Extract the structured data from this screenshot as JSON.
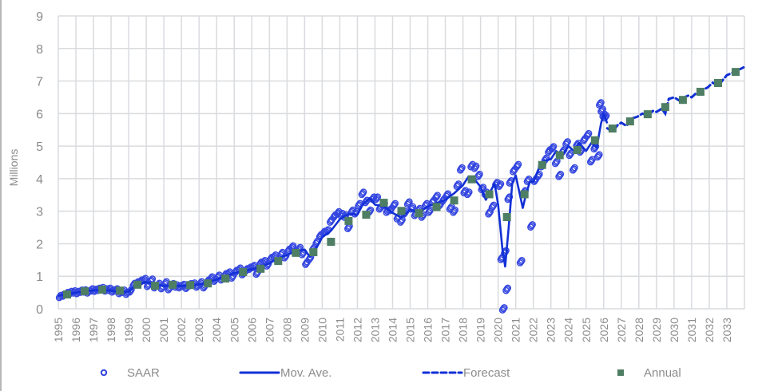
{
  "chart_data": {
    "type": "line",
    "title": "",
    "xlabel": "",
    "ylabel": "Millions",
    "ylim": [
      0,
      9
    ],
    "yticks": [
      "0",
      "1",
      "2",
      "3",
      "4",
      "5",
      "6",
      "7",
      "8",
      "9"
    ],
    "xticks": [
      "1995",
      "1996",
      "1997",
      "1998",
      "1999",
      "2000",
      "2001",
      "2002",
      "2003",
      "2004",
      "2005",
      "2006",
      "2007",
      "2008",
      "2009",
      "2010",
      "2011",
      "2012",
      "2013",
      "2014",
      "2015",
      "2016",
      "2017",
      "2018",
      "2019",
      "2020",
      "2021",
      "2022",
      "2023",
      "2024",
      "2025",
      "2026",
      "2027",
      "2028",
      "2029",
      "2030",
      "2031",
      "2032",
      "2033"
    ],
    "grid": true,
    "legend_position": "bottom",
    "legend": [
      "SAAR",
      "Mov. Ave.",
      "Forecast",
      "Annual"
    ],
    "colors": {
      "saar": "#3446e0",
      "mov_ave": "#1230d6",
      "forecast": "#1230d6",
      "annual": "#4e7e63",
      "grid": "#d9dbde",
      "text": "#8c8c8c"
    },
    "series": [
      {
        "name": "Annual",
        "x": [
          1995.5,
          1996.5,
          1997.5,
          1998.5,
          1999.5,
          2000.5,
          2001.5,
          2002.5,
          2003.5,
          2004.5,
          2005.5,
          2006.5,
          2007.5,
          2008.5,
          2009.5,
          2010.5,
          2011.5,
          2012.5,
          2013.5,
          2014.5,
          2015.5,
          2016.5,
          2017.5,
          2018.5,
          2019.5,
          2020.5,
          2021.5,
          2022.5,
          2023.5,
          2024.5,
          2025.5,
          2026.5,
          2027.5,
          2028.5,
          2029.5,
          2030.5,
          2031.5,
          2032.5,
          2033.5
        ],
        "values": [
          0.44,
          0.54,
          0.59,
          0.56,
          0.74,
          0.71,
          0.74,
          0.73,
          0.78,
          0.93,
          1.13,
          1.23,
          1.47,
          1.72,
          1.74,
          2.06,
          2.7,
          2.89,
          3.26,
          3.01,
          2.94,
          3.13,
          3.33,
          3.98,
          3.52,
          2.82,
          3.52,
          4.42,
          4.72,
          4.88,
          5.18,
          5.54,
          5.76,
          5.98,
          6.2,
          6.42,
          6.67,
          6.94,
          7.28
        ]
      },
      {
        "name": "Mov. Ave.",
        "x": [
          1995.0,
          1995.5,
          1996.0,
          1996.5,
          1997.0,
          1997.5,
          1998.0,
          1998.5,
          1999.0,
          1999.3,
          1999.7,
          2000.0,
          2000.5,
          2001.0,
          2001.5,
          2002.0,
          2002.5,
          2003.0,
          2003.5,
          2004.0,
          2004.5,
          2005.0,
          2005.5,
          2006.0,
          2006.5,
          2007.0,
          2007.5,
          2008.0,
          2008.5,
          2009.0,
          2009.3,
          2009.7,
          2010.0,
          2010.5,
          2011.0,
          2011.5,
          2012.0,
          2012.3,
          2012.7,
          2013.0,
          2013.5,
          2014.0,
          2014.5,
          2015.0,
          2015.5,
          2016.0,
          2016.5,
          2017.0,
          2017.5,
          2018.0,
          2018.3,
          2018.7,
          2019.0,
          2019.3,
          2019.5,
          2019.8,
          2020.0,
          2020.25,
          2020.4,
          2020.6,
          2020.8,
          2021.0,
          2021.2,
          2021.4,
          2021.6,
          2021.8,
          2022.0,
          2022.3,
          2022.6,
          2023.0,
          2023.3,
          2023.6,
          2024.0,
          2024.3,
          2024.6,
          2025.0,
          2025.3,
          2025.6,
          2025.85,
          2026.0,
          2026.2
        ],
        "values": [
          0.4,
          0.45,
          0.5,
          0.53,
          0.57,
          0.58,
          0.56,
          0.52,
          0.53,
          0.68,
          0.78,
          0.82,
          0.75,
          0.7,
          0.72,
          0.7,
          0.72,
          0.75,
          0.8,
          0.9,
          1.0,
          1.1,
          1.15,
          1.22,
          1.28,
          1.4,
          1.55,
          1.65,
          1.78,
          1.82,
          1.6,
          1.9,
          2.2,
          2.4,
          2.75,
          2.92,
          2.9,
          3.2,
          3.4,
          3.2,
          3.15,
          2.95,
          2.8,
          3.05,
          2.95,
          3.15,
          3.25,
          3.35,
          3.55,
          3.8,
          4.05,
          3.95,
          3.75,
          3.35,
          3.55,
          3.85,
          3.2,
          1.8,
          1.3,
          2.5,
          3.85,
          4.1,
          3.6,
          3.1,
          3.55,
          3.9,
          3.9,
          4.3,
          4.55,
          4.6,
          4.85,
          4.7,
          5.0,
          4.85,
          5.1,
          4.85,
          5.1,
          4.95,
          5.7,
          6.0,
          5.7
        ]
      },
      {
        "name": "Forecast",
        "x": [
          2026.2,
          2026.5,
          2026.8,
          2027.0,
          2027.3,
          2027.6,
          2027.9,
          2028.2,
          2028.5,
          2028.8,
          2029.0,
          2029.3,
          2029.5,
          2029.7,
          2030.0,
          2030.3,
          2030.5,
          2030.8,
          2031.0,
          2031.3,
          2031.6,
          2031.9,
          2032.2,
          2032.5,
          2032.8,
          2033.0,
          2033.3,
          2033.6,
          2033.95
        ],
        "values": [
          5.55,
          5.45,
          5.65,
          5.72,
          5.62,
          5.85,
          5.9,
          6.0,
          5.95,
          6.08,
          6.05,
          6.15,
          6.0,
          6.45,
          6.5,
          6.4,
          6.48,
          6.55,
          6.5,
          6.65,
          6.72,
          6.8,
          6.95,
          6.85,
          7.05,
          7.18,
          7.25,
          7.32,
          7.42
        ]
      },
      {
        "name": "SAAR",
        "note": "monthly scatter approximated; see rendering",
        "x": [
          1995.1,
          1995.3,
          1995.5,
          1995.7,
          1995.9,
          1996.1,
          1996.3,
          1996.5,
          1996.7,
          1996.9,
          1997.1,
          1997.3,
          1997.5,
          1997.7,
          1997.9,
          1998.1,
          1998.3,
          1998.5,
          1998.7,
          1998.9,
          1999.1,
          1999.3,
          1999.5,
          1999.7,
          1999.9,
          2000.1,
          2000.3,
          2000.5,
          2000.7,
          2000.9,
          2001.1,
          2001.3,
          2001.5,
          2001.7,
          2001.9,
          2002.1,
          2002.3,
          2002.5,
          2002.7,
          2002.9,
          2003.1,
          2003.3,
          2003.5,
          2003.7,
          2003.9,
          2004.1,
          2004.3,
          2004.5,
          2004.7,
          2004.9,
          2005.1,
          2005.3,
          2005.5,
          2005.7,
          2005.9,
          2006.1,
          2006.3,
          2006.5,
          2006.7,
          2006.9,
          2007.1,
          2007.3,
          2007.5,
          2007.7,
          2007.9,
          2008.1,
          2008.3,
          2008.5,
          2008.7,
          2008.9,
          2009.1,
          2009.3,
          2009.5,
          2009.7,
          2009.9,
          2010.1,
          2010.3,
          2010.5,
          2010.7,
          2010.9,
          2011.1,
          2011.3,
          2011.5,
          2011.7,
          2011.9,
          2012.1,
          2012.3,
          2012.5,
          2012.7,
          2012.9,
          2013.1,
          2013.3,
          2013.5,
          2013.7,
          2013.9,
          2014.1,
          2014.3,
          2014.5,
          2014.7,
          2014.9,
          2015.1,
          2015.3,
          2015.5,
          2015.7,
          2015.9,
          2016.1,
          2016.3,
          2016.5,
          2016.7,
          2016.9,
          2017.1,
          2017.3,
          2017.5,
          2017.7,
          2017.9,
          2018.1,
          2018.3,
          2018.5,
          2018.7,
          2018.9,
          2019.1,
          2019.3,
          2019.5,
          2019.7,
          2019.9,
          2020.1,
          2020.2,
          2020.3,
          2020.4,
          2020.5,
          2020.6,
          2020.7,
          2020.9,
          2021.1,
          2021.3,
          2021.5,
          2021.7,
          2021.9,
          2022.1,
          2022.3,
          2022.5,
          2022.7,
          2022.9,
          2023.1,
          2023.3,
          2023.5,
          2023.7,
          2023.9,
          2024.1,
          2024.3,
          2024.5,
          2024.7,
          2024.9,
          2025.1,
          2025.3,
          2025.5,
          2025.7,
          2025.8,
          2025.9,
          2026.0,
          2026.1
        ],
        "values": [
          0.38,
          0.42,
          0.47,
          0.5,
          0.52,
          0.5,
          0.54,
          0.55,
          0.52,
          0.58,
          0.57,
          0.6,
          0.62,
          0.58,
          0.6,
          0.55,
          0.58,
          0.5,
          0.54,
          0.48,
          0.55,
          0.75,
          0.8,
          0.85,
          0.9,
          0.72,
          0.88,
          0.68,
          0.75,
          0.65,
          0.8,
          0.62,
          0.74,
          0.7,
          0.68,
          0.72,
          0.66,
          0.74,
          0.76,
          0.7,
          0.8,
          0.68,
          0.85,
          0.95,
          0.88,
          1.0,
          0.92,
          1.05,
          1.1,
          0.98,
          1.15,
          1.22,
          1.08,
          1.2,
          1.25,
          1.3,
          1.1,
          1.4,
          1.45,
          1.35,
          1.55,
          1.62,
          1.5,
          1.7,
          1.6,
          1.8,
          1.9,
          1.75,
          1.85,
          1.7,
          1.4,
          1.55,
          1.85,
          2.05,
          2.25,
          2.35,
          2.4,
          2.7,
          2.85,
          2.95,
          2.9,
          2.85,
          2.5,
          3.0,
          2.95,
          3.2,
          3.55,
          3.3,
          3.0,
          3.4,
          3.4,
          3.1,
          3.2,
          3.0,
          3.05,
          3.2,
          2.8,
          2.7,
          2.95,
          3.25,
          3.1,
          2.9,
          3.05,
          2.85,
          3.2,
          3.0,
          3.3,
          3.45,
          3.2,
          3.35,
          3.5,
          3.1,
          3.0,
          3.8,
          4.3,
          3.6,
          3.55,
          4.4,
          4.35,
          4.1,
          3.7,
          3.55,
          2.95,
          3.15,
          3.85,
          3.8,
          1.55,
          0.0,
          1.75,
          0.6,
          3.4,
          3.9,
          4.25,
          4.4,
          1.45,
          3.6,
          3.95,
          2.55,
          3.95,
          4.1,
          4.4,
          4.6,
          4.85,
          4.95,
          4.5,
          4.1,
          4.85,
          5.1,
          4.75,
          4.3,
          5.05,
          4.85,
          5.2,
          5.35,
          4.55,
          4.95,
          4.7,
          6.3,
          6.1,
          5.95,
          5.9
        ]
      }
    ]
  },
  "y_axis": {
    "title": "Millions"
  },
  "legend": {
    "saar": "SAAR",
    "mov_ave": "Mov. Ave.",
    "forecast": "Forecast",
    "annual": "Annual"
  }
}
